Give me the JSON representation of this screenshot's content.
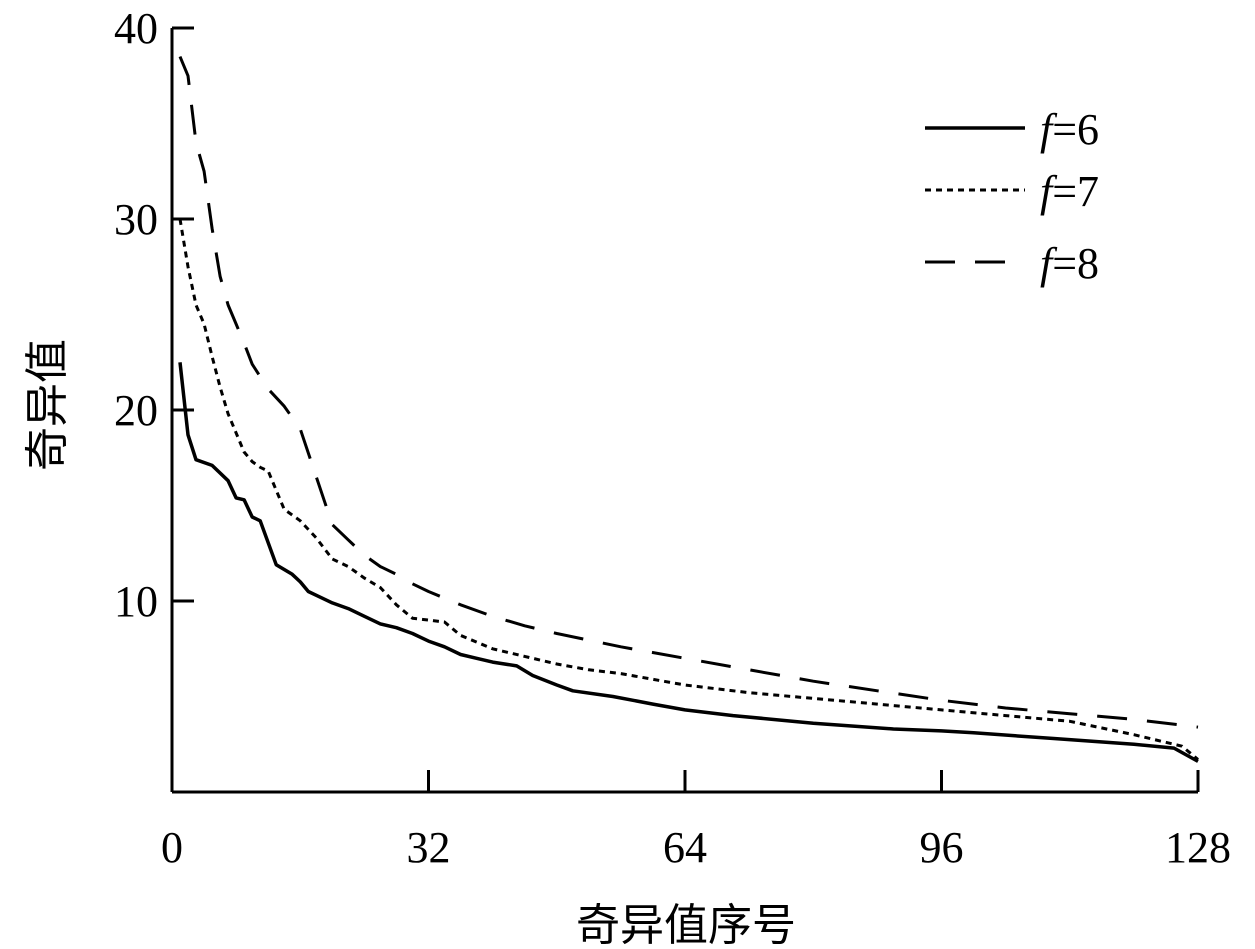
{
  "chart_data": {
    "type": "line",
    "title": "",
    "xlabel": "奇异值序号",
    "ylabel": "奇异值",
    "xlim": [
      0,
      128
    ],
    "ylim": [
      0,
      40
    ],
    "x_ticks": [
      0,
      32,
      64,
      96,
      128
    ],
    "y_ticks": [
      10,
      20,
      30,
      40
    ],
    "grid": false,
    "legend_position": "top-right",
    "series": [
      {
        "name": "f=6",
        "name_parts": [
          "f",
          "=6"
        ],
        "style": "solid",
        "x": [
          1,
          2,
          3,
          5,
          7,
          8,
          9,
          10,
          11,
          13,
          15,
          16,
          17,
          18,
          20,
          22,
          24,
          26,
          28,
          30,
          32,
          34,
          36,
          38,
          40,
          43,
          45,
          48,
          50,
          55,
          60,
          64,
          70,
          80,
          90,
          96,
          100,
          110,
          120,
          125,
          128
        ],
        "y": [
          22.5,
          18.7,
          17.4,
          17.1,
          16.3,
          15.4,
          15.3,
          14.4,
          14.2,
          11.9,
          11.4,
          11.0,
          10.5,
          10.3,
          9.9,
          9.6,
          9.2,
          8.8,
          8.6,
          8.3,
          7.9,
          7.6,
          7.2,
          7.0,
          6.8,
          6.6,
          6.1,
          5.6,
          5.3,
          5.0,
          4.6,
          4.3,
          4.0,
          3.6,
          3.3,
          3.2,
          3.1,
          2.8,
          2.5,
          2.3,
          1.6
        ]
      },
      {
        "name": "f=7",
        "name_parts": [
          "f",
          "=7"
        ],
        "style": "dotted",
        "x": [
          1,
          2,
          3,
          4,
          5,
          6,
          7,
          8,
          9,
          10,
          11,
          12,
          14,
          16,
          18,
          20,
          22,
          24,
          26,
          28,
          30,
          32,
          34,
          36,
          40,
          44,
          48,
          52,
          56,
          60,
          64,
          72,
          80,
          88,
          96,
          104,
          112,
          120,
          126,
          128
        ],
        "y": [
          30.0,
          27.5,
          25.5,
          24.5,
          22.8,
          21.2,
          19.8,
          18.8,
          17.8,
          17.3,
          17.0,
          16.8,
          14.8,
          14.2,
          13.3,
          12.2,
          11.8,
          11.2,
          10.7,
          9.8,
          9.1,
          9.0,
          8.9,
          8.2,
          7.5,
          7.1,
          6.7,
          6.4,
          6.2,
          5.9,
          5.6,
          5.2,
          4.9,
          4.6,
          4.3,
          4.0,
          3.7,
          3.0,
          2.4,
          1.7
        ]
      },
      {
        "name": "f=8",
        "name_parts": [
          "f",
          "=8"
        ],
        "style": "dashed",
        "x": [
          1,
          2,
          3,
          4,
          5,
          6,
          7,
          8,
          9,
          10,
          12,
          14,
          16,
          18,
          20,
          22,
          24,
          26,
          28,
          30,
          32,
          36,
          40,
          44,
          48,
          56,
          64,
          72,
          80,
          88,
          96,
          104,
          112,
          120,
          128
        ],
        "y": [
          38.5,
          37.5,
          34.0,
          32.5,
          29.5,
          27.0,
          25.5,
          24.5,
          23.5,
          22.4,
          21.1,
          20.2,
          19.0,
          16.5,
          14.0,
          13.2,
          12.4,
          11.8,
          11.4,
          10.9,
          10.5,
          9.8,
          9.2,
          8.7,
          8.3,
          7.6,
          7.0,
          6.4,
          5.8,
          5.3,
          4.8,
          4.4,
          4.1,
          3.8,
          3.4
        ]
      }
    ]
  }
}
